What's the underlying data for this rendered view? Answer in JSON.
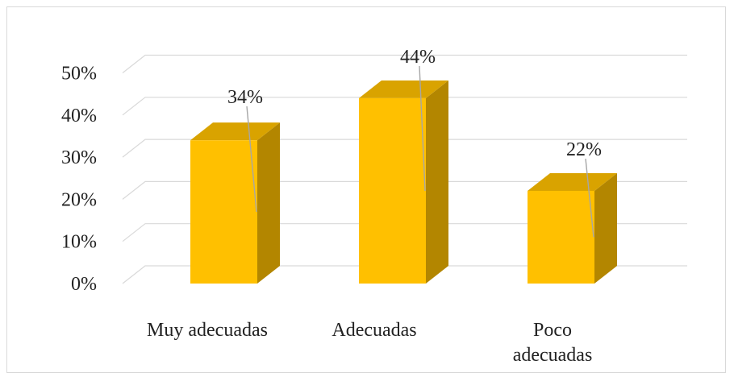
{
  "chart_data": {
    "type": "bar",
    "style": "3d-column",
    "categories": [
      "Muy adecuadas",
      "Adecuadas",
      "Poco adecuadas"
    ],
    "category_lines": [
      [
        "Muy adecuadas"
      ],
      [
        "Adecuadas"
      ],
      [
        "Poco",
        "adecuadas"
      ]
    ],
    "values": [
      34,
      44,
      22
    ],
    "data_labels": [
      "34%",
      "44%",
      "22%"
    ],
    "ylim": [
      0,
      50
    ],
    "y_ticks": [
      0,
      10,
      20,
      30,
      40,
      50
    ],
    "y_tick_labels": [
      "0%",
      "10%",
      "20%",
      "30%",
      "40%",
      "50%"
    ],
    "grid": true,
    "legend": "none",
    "colors": {
      "front": "#FFC000",
      "side": "#B38600",
      "top": "#D9A300",
      "grid": "#D9D9D9",
      "leader": "#A6A6A6"
    }
  }
}
